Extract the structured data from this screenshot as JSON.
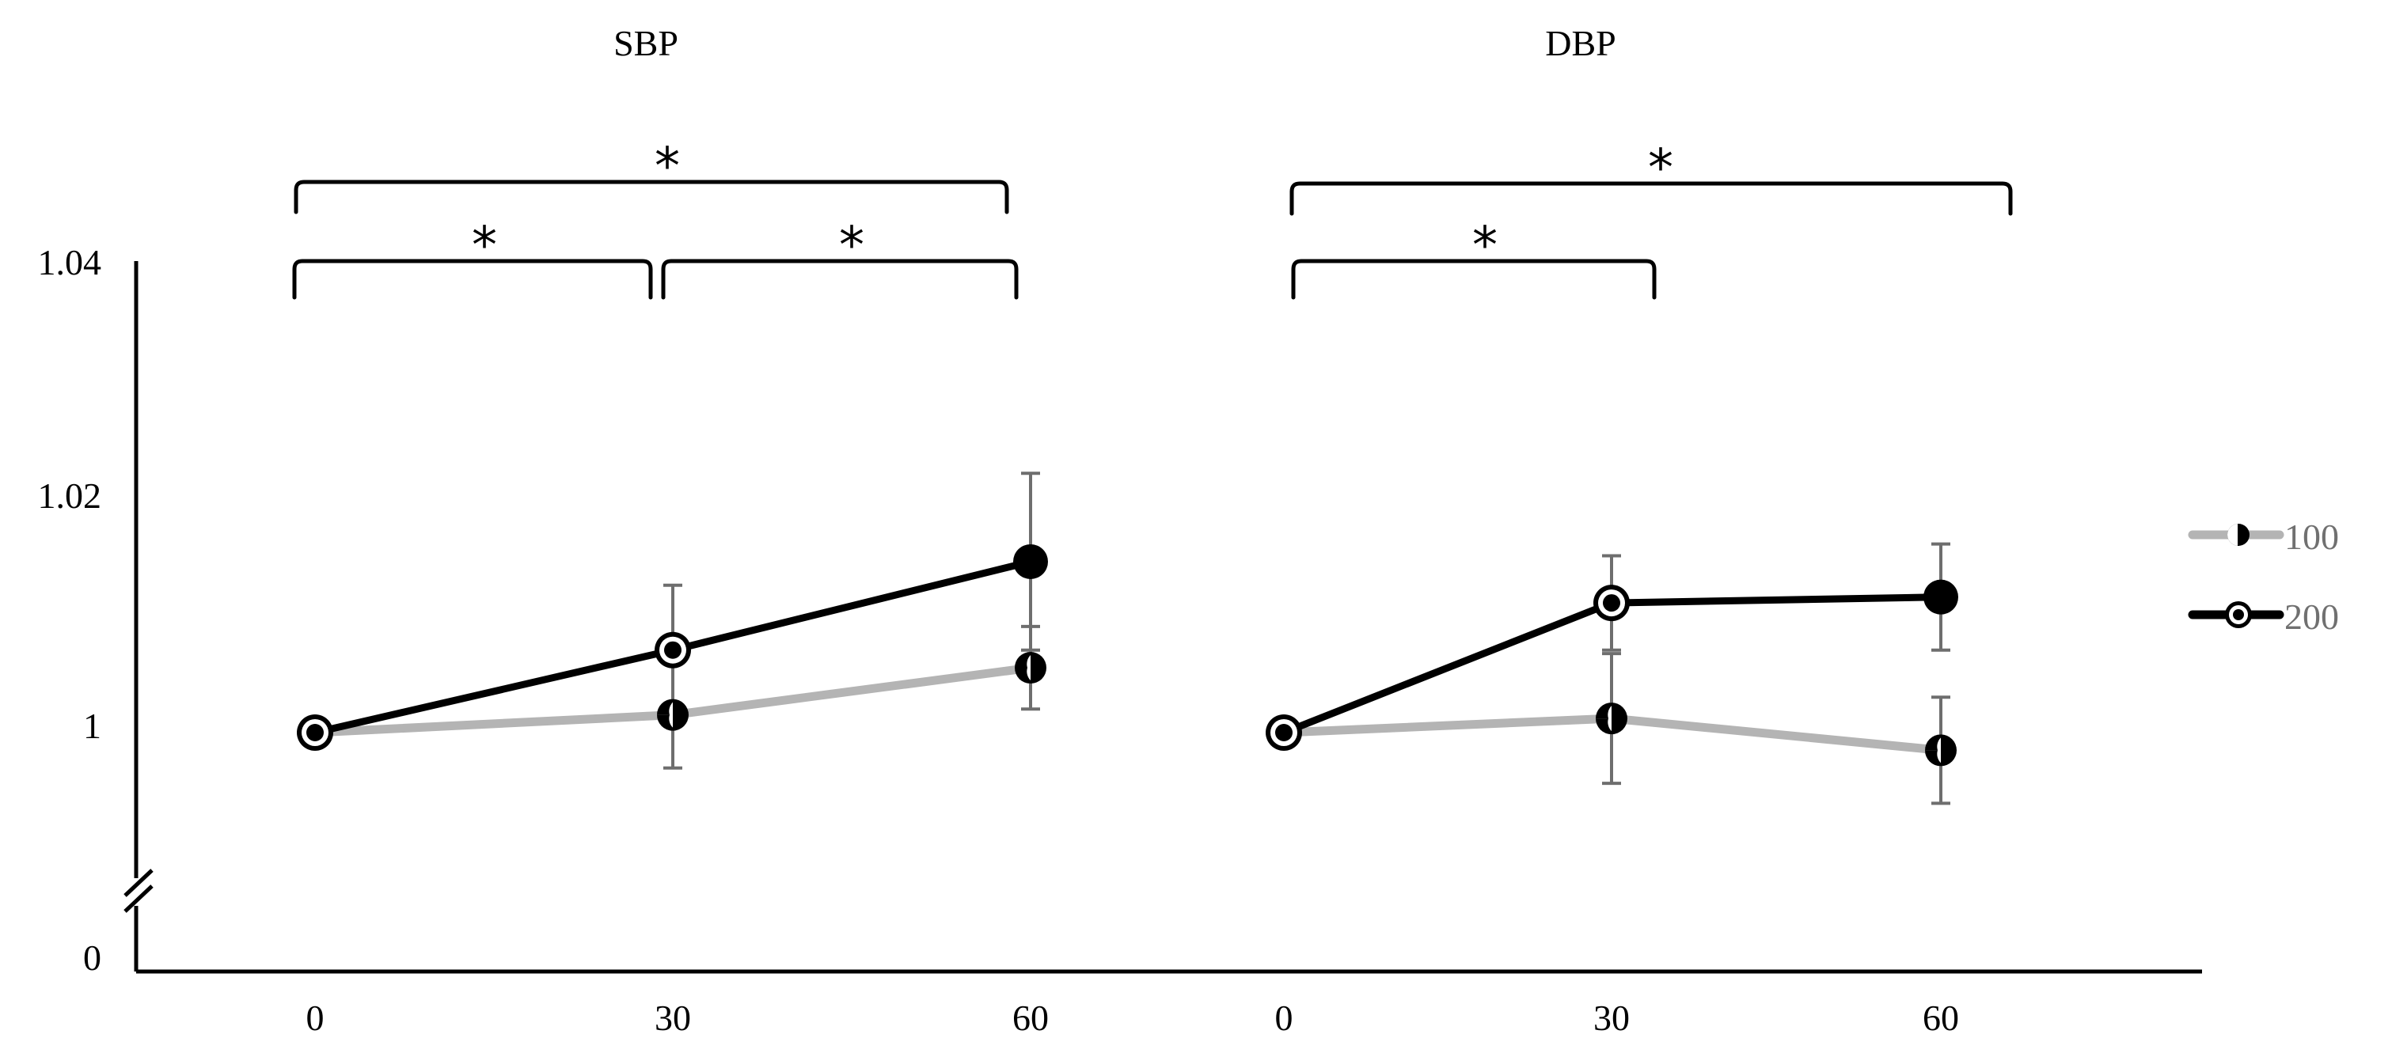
{
  "chart_data": {
    "type": "line",
    "y_tick_labels": [
      "1.04",
      "1.02",
      "1",
      "0"
    ],
    "y_ticks": [
      1.04,
      1.02,
      1.0
    ],
    "y_break_label": "0",
    "ylim": [
      0.99,
      1.04
    ],
    "axis_break": true,
    "legend_position": "right",
    "legend": [
      {
        "name": "100",
        "color": "#b4b4b4",
        "marker": "half-filled"
      },
      {
        "name": "200",
        "color": "#000000",
        "marker": "ring"
      }
    ],
    "panels": [
      {
        "title": "SBP",
        "categories": [
          "0",
          "30",
          "60"
        ],
        "series": [
          {
            "name": "100",
            "values": [
              1.0,
              1.0015,
              1.0055
            ],
            "errors": [
              0,
              0.0045,
              0.0035
            ]
          },
          {
            "name": "200",
            "values": [
              1.0,
              1.007,
              1.0145
            ],
            "errors": [
              0,
              0.0055,
              0.0075
            ]
          }
        ],
        "significance": [
          {
            "from": "0",
            "to": "60",
            "label": "*"
          },
          {
            "from": "0",
            "to": "30",
            "label": "*"
          },
          {
            "from": "30",
            "to": "60",
            "label": "*"
          }
        ]
      },
      {
        "title": "DBP",
        "categories": [
          "0",
          "30",
          "60"
        ],
        "series": [
          {
            "name": "100",
            "values": [
              1.0,
              1.0012,
              0.9985
            ],
            "errors": [
              0,
              0.0055,
              0.0045
            ]
          },
          {
            "name": "200",
            "values": [
              1.0,
              1.011,
              1.0115
            ],
            "errors": [
              0,
              0.004,
              0.0045
            ]
          }
        ],
        "significance": [
          {
            "from": "0",
            "to": "60",
            "label": "*"
          },
          {
            "from": "0",
            "to": "30",
            "label": "*"
          }
        ]
      }
    ]
  }
}
